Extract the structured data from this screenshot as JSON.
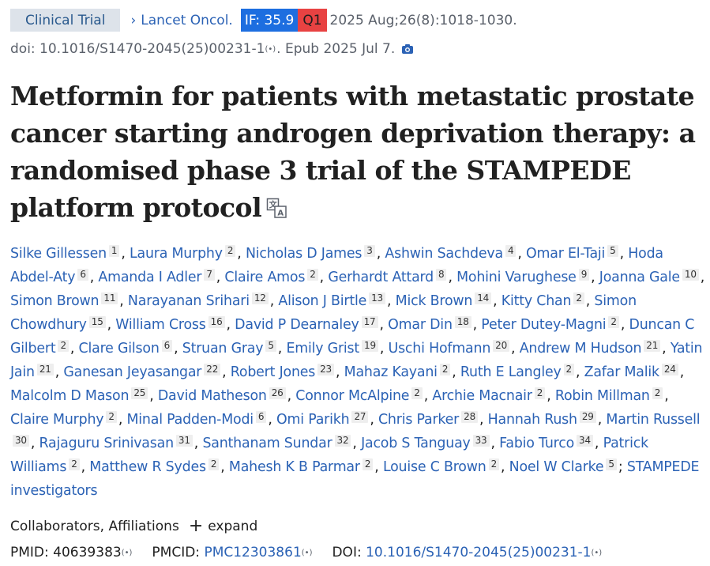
{
  "citation": {
    "type_badge": "Clinical Trial",
    "chevron": "›",
    "journal": "Lancet Oncol.",
    "impact_factor": "IF: 35.9",
    "quartile": "Q1",
    "details": "2025 Aug;26(8):1018-1030.",
    "doi_line": "doi: 10.1016/S1470-2045(25)00231-1",
    "wave": "(•)",
    "epub": ". Epub 2025 Jul 7.",
    "colors": {
      "type_bg": "#dde3ea",
      "if_bg": "#1d6ee0",
      "q_bg": "#e84242",
      "link": "#2b62b5"
    }
  },
  "title": "Metformin for patients with metastatic prostate cancer starting androgen deprivation therapy: a randomised phase 3 trial of the STAMPEDE platform protocol",
  "authors": [
    {
      "name": "Silke Gillessen",
      "aff": "1"
    },
    {
      "name": "Laura Murphy",
      "aff": "2"
    },
    {
      "name": "Nicholas D James",
      "aff": "3"
    },
    {
      "name": "Ashwin Sachdeva",
      "aff": "4"
    },
    {
      "name": "Omar El-Taji",
      "aff": "5"
    },
    {
      "name": "Hoda Abdel-Aty",
      "aff": "6"
    },
    {
      "name": "Amanda I Adler",
      "aff": "7"
    },
    {
      "name": "Claire Amos",
      "aff": "2"
    },
    {
      "name": "Gerhardt Attard",
      "aff": "8"
    },
    {
      "name": "Mohini Varughese",
      "aff": "9"
    },
    {
      "name": "Joanna Gale",
      "aff": "10"
    },
    {
      "name": "Simon Brown",
      "aff": "11"
    },
    {
      "name": "Narayanan Srihari",
      "aff": "12"
    },
    {
      "name": "Alison J Birtle",
      "aff": "13"
    },
    {
      "name": "Mick Brown",
      "aff": "14"
    },
    {
      "name": "Kitty Chan",
      "aff": "2"
    },
    {
      "name": "Simon Chowdhury",
      "aff": "15"
    },
    {
      "name": "William Cross",
      "aff": "16"
    },
    {
      "name": "David P Dearnaley",
      "aff": "17"
    },
    {
      "name": "Omar Din",
      "aff": "18"
    },
    {
      "name": "Peter Dutey-Magni",
      "aff": "2"
    },
    {
      "name": "Duncan C Gilbert",
      "aff": "2"
    },
    {
      "name": "Clare Gilson",
      "aff": "6"
    },
    {
      "name": "Struan Gray",
      "aff": "5"
    },
    {
      "name": "Emily Grist",
      "aff": "19"
    },
    {
      "name": "Uschi Hofmann",
      "aff": "20"
    },
    {
      "name": "Andrew M Hudson",
      "aff": "21"
    },
    {
      "name": "Yatin Jain",
      "aff": "21"
    },
    {
      "name": "Ganesan Jeyasangar",
      "aff": "22"
    },
    {
      "name": "Robert Jones",
      "aff": "23"
    },
    {
      "name": "Mahaz Kayani",
      "aff": "2"
    },
    {
      "name": "Ruth E Langley",
      "aff": "2"
    },
    {
      "name": "Zafar Malik",
      "aff": "24"
    },
    {
      "name": "Malcolm D Mason",
      "aff": "25"
    },
    {
      "name": "David Matheson",
      "aff": "26"
    },
    {
      "name": "Connor McAlpine",
      "aff": "2"
    },
    {
      "name": "Archie Macnair",
      "aff": "2"
    },
    {
      "name": "Robin Millman",
      "aff": "2"
    },
    {
      "name": "Claire Murphy",
      "aff": "2"
    },
    {
      "name": "Minal Padden-Modi",
      "aff": "6"
    },
    {
      "name": "Omi Parikh",
      "aff": "27"
    },
    {
      "name": "Chris Parker",
      "aff": "28"
    },
    {
      "name": "Hannah Rush",
      "aff": "29"
    },
    {
      "name": "Martin Russell",
      "aff": "30"
    },
    {
      "name": "Rajaguru Srinivasan",
      "aff": "31"
    },
    {
      "name": "Santhanam Sundar",
      "aff": "32"
    },
    {
      "name": "Jacob S Tanguay",
      "aff": "33"
    },
    {
      "name": "Fabio Turco",
      "aff": "34"
    },
    {
      "name": "Patrick Williams",
      "aff": "2"
    },
    {
      "name": "Matthew R Sydes",
      "aff": "2"
    },
    {
      "name": "Mahesh K B Parmar",
      "aff": "2"
    },
    {
      "name": "Louise C Brown",
      "aff": "2"
    },
    {
      "name": "Noel W Clarke",
      "aff": "5"
    }
  ],
  "group_author": "STAMPEDE investigators",
  "collaborators": {
    "label": "Collaborators, Affiliations",
    "plus": "+",
    "expand": "expand"
  },
  "identifiers": {
    "pmid_label": "PMID:",
    "pmid": "40639383",
    "pmcid_label": "PMCID:",
    "pmcid": "PMC12303861",
    "doi_label": "DOI:",
    "doi": "10.1016/S1470-2045(25)00231-1",
    "wave": "(•)"
  }
}
